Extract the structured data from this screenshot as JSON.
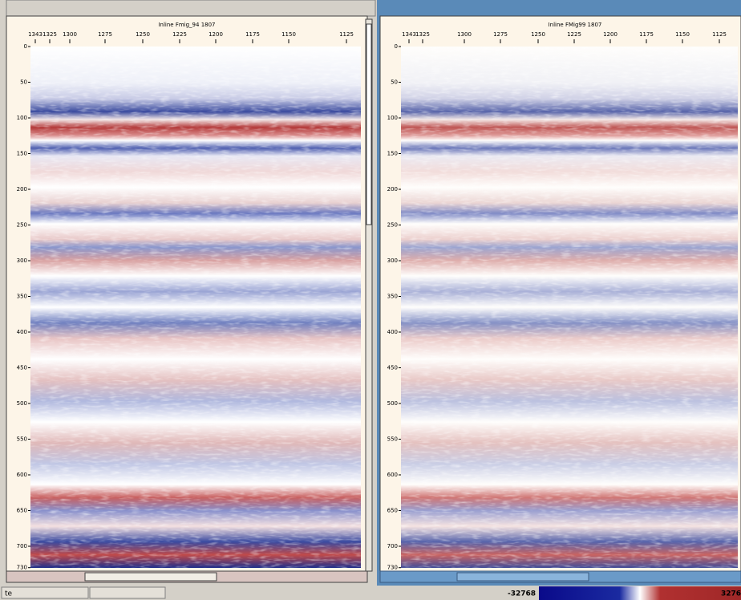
{
  "panels": [
    {
      "title": "Inline Fmig_94 1807",
      "x_ticks": [
        1343,
        1325,
        1300,
        1275,
        1250,
        1225,
        1200,
        1175,
        1150,
        1125
      ],
      "y_ticks": [
        0,
        50,
        100,
        150,
        200,
        250,
        300,
        350,
        400,
        450,
        500,
        550,
        600,
        650,
        700,
        730
      ]
    },
    {
      "title": "Inline FMig99 1807",
      "x_ticks": [
        1343,
        1325,
        1300,
        1275,
        1250,
        1225,
        1200,
        1175,
        1150,
        1125
      ],
      "y_ticks": [
        0,
        50,
        100,
        150,
        200,
        250,
        300,
        350,
        400,
        450,
        500,
        550,
        600,
        650,
        700,
        730
      ]
    }
  ],
  "status": {
    "text": "te"
  },
  "colorbar": {
    "min": -32768,
    "max_label": "3276"
  }
}
